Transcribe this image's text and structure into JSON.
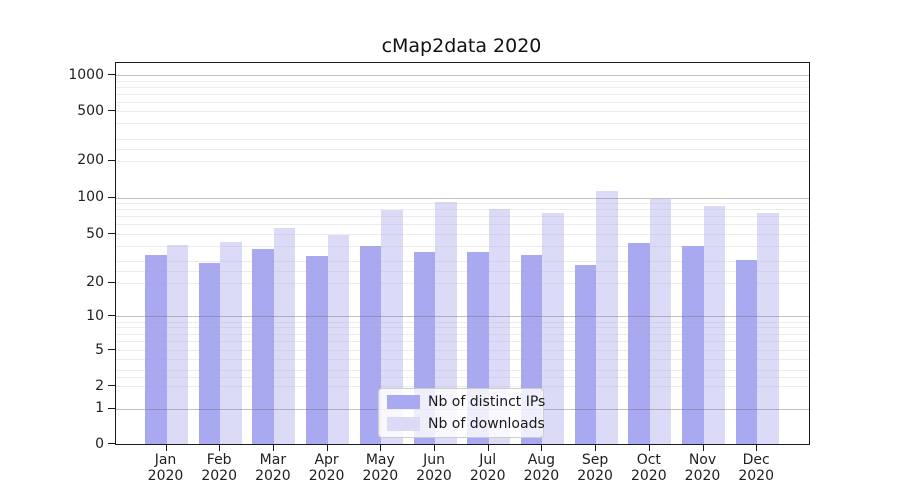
{
  "chart_data": {
    "type": "bar",
    "title": "cMap2data 2020",
    "categories": [
      "Jan 2020",
      "Feb 2020",
      "Mar 2020",
      "Apr 2020",
      "May 2020",
      "Jun 2020",
      "Jul 2020",
      "Aug 2020",
      "Sep 2020",
      "Oct 2020",
      "Nov 2020",
      "Dec 2020"
    ],
    "x_tick_month": [
      "Jan",
      "Feb",
      "Mar",
      "Apr",
      "May",
      "Jun",
      "Jul",
      "Aug",
      "Sep",
      "Oct",
      "Nov",
      "Dec"
    ],
    "x_tick_year": "2020",
    "series": [
      {
        "name": "Nb of distinct IPs",
        "color": "#a9a9f1",
        "values": [
          34,
          29,
          38,
          33,
          40,
          36,
          36,
          34,
          28,
          42,
          40,
          31
        ]
      },
      {
        "name": "Nb of downloads",
        "color": "#dbdbf8",
        "values": [
          41,
          43,
          56,
          49,
          79,
          92,
          80,
          74,
          113,
          97,
          85,
          75
        ]
      }
    ],
    "xlabel": "",
    "ylabel": "",
    "yscale": "symlog",
    "y_ticks": [
      1000,
      500,
      200,
      100,
      50,
      20,
      10,
      5,
      2,
      1,
      0
    ],
    "ylim": [
      0,
      1250
    ],
    "grid": true,
    "legend_position": "lower center"
  },
  "colors": {
    "bar_dark": "#a9a9f1",
    "bar_light": "#dbdbf8",
    "spine": "#1a1a1a",
    "major_grid": "#c9c9c9",
    "minor_grid": "#ececec",
    "legend_border": "#cccccc",
    "text": "#1f1f1f"
  }
}
